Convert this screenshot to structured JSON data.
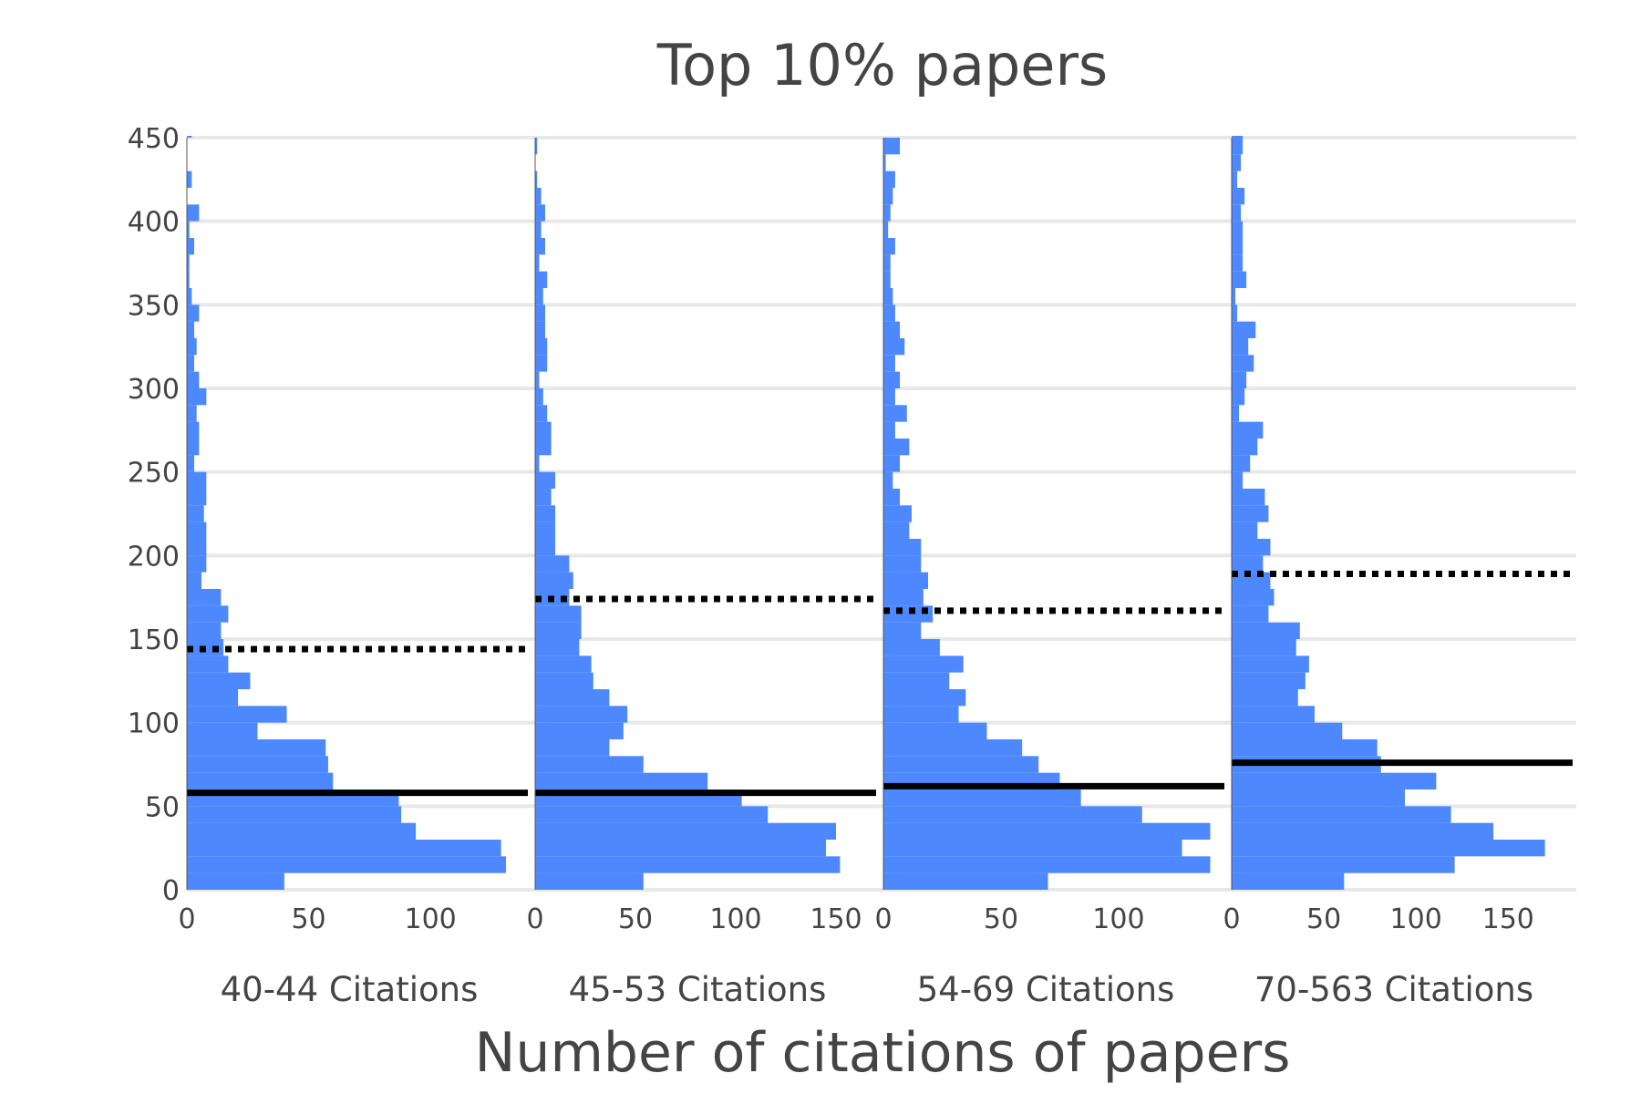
{
  "colors": {
    "bar": "#4d88ff",
    "grid": "#e8e8e8",
    "median_line": "#000000",
    "text": "#444444"
  },
  "chart_data": {
    "type": "bar",
    "orientation": "horizontal-histogram",
    "title": "Top 10% papers",
    "xlabel": "Number of citations of papers",
    "ylabel": "",
    "ylim": [
      0,
      450
    ],
    "bin_width": 10,
    "yticks": [
      0,
      50,
      100,
      150,
      200,
      250,
      300,
      350,
      400,
      450
    ],
    "grid": "horizontal",
    "legend": "none",
    "panels": [
      {
        "label": "40-44 Citations",
        "xlim": [
          0,
          140
        ],
        "xticks": [
          0,
          50,
          100
        ],
        "solid_line": 58,
        "dotted_line": 144,
        "counts": [
          40,
          131,
          129,
          94,
          88,
          87,
          60,
          58,
          57,
          29,
          41,
          21,
          26,
          17,
          15,
          14,
          17,
          14,
          6,
          8,
          8,
          8,
          7,
          8,
          8,
          3,
          5,
          5,
          4,
          8,
          5,
          3,
          4,
          3,
          5,
          2,
          1,
          1,
          3,
          1,
          5,
          0,
          2,
          0,
          0,
          2
        ]
      },
      {
        "label": "45-53 Citations",
        "xlim": [
          0,
          170
        ],
        "xticks": [
          0,
          50,
          100,
          150
        ],
        "solid_line": 58,
        "dotted_line": 174,
        "counts": [
          54,
          152,
          145,
          150,
          116,
          103,
          86,
          54,
          37,
          44,
          46,
          37,
          29,
          28,
          22,
          23,
          23,
          17,
          19,
          17,
          10,
          10,
          10,
          8,
          10,
          2,
          8,
          8,
          6,
          4,
          2,
          6,
          6,
          5,
          5,
          4,
          6,
          2,
          5,
          3,
          5,
          3,
          1,
          0,
          1,
          0
        ]
      },
      {
        "label": "54-69 Citations",
        "xlim": [
          0,
          145
        ],
        "xticks": [
          0,
          50,
          100
        ],
        "solid_line": 62,
        "dotted_line": 167,
        "counts": [
          70,
          139,
          127,
          139,
          110,
          84,
          75,
          66,
          59,
          44,
          32,
          35,
          28,
          34,
          24,
          16,
          21,
          17,
          19,
          16,
          16,
          11,
          12,
          7,
          4,
          7,
          11,
          5,
          10,
          5,
          7,
          5,
          9,
          7,
          5,
          4,
          3,
          3,
          5,
          2,
          3,
          4,
          5,
          1,
          7,
          0,
          2
        ]
      },
      {
        "label": "70-563 Citations",
        "xlim": [
          0,
          185
        ],
        "xticks": [
          0,
          50,
          100,
          150
        ],
        "solid_line": 76,
        "dotted_line": 189,
        "counts": [
          61,
          121,
          170,
          142,
          119,
          94,
          111,
          81,
          79,
          60,
          45,
          36,
          40,
          42,
          35,
          37,
          20,
          23,
          21,
          17,
          21,
          14,
          20,
          18,
          6,
          10,
          14,
          17,
          4,
          7,
          8,
          12,
          9,
          13,
          3,
          2,
          8,
          6,
          6,
          6,
          5,
          7,
          3,
          5,
          6,
          6
        ]
      }
    ]
  }
}
